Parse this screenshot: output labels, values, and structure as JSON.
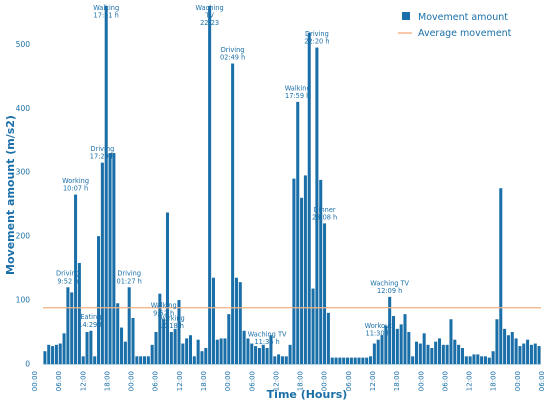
{
  "chart_data": {
    "type": "bar",
    "xlabel": "Time (Hours)",
    "ylabel": "Movement amount (m/s2)",
    "ylim": [
      0,
      560
    ],
    "yticks": [
      0,
      100,
      200,
      300,
      400,
      500
    ],
    "xticks": [
      "00:00",
      "06:00",
      "12:00",
      "18:00",
      "00:00",
      "06:00",
      "12:00",
      "18:00",
      "00:00",
      "06:00",
      "12:00",
      "18:00",
      "00:00",
      "06:00",
      "12:00",
      "18:00",
      "00:00",
      "06:00",
      "12:00",
      "18:00",
      "00:00",
      "06:00"
    ],
    "bar_color": "#1a6fa8",
    "avg_color": "#f4b183",
    "average_value": 88,
    "legend": {
      "bars": "Movement amount",
      "line": "Average movement",
      "placement": "top-right"
    },
    "values": [
      20,
      30,
      28,
      30,
      32,
      48,
      120,
      112,
      265,
      158,
      12,
      50,
      52,
      12,
      200,
      315,
      560,
      330,
      330,
      95,
      57,
      35,
      120,
      72,
      12,
      12,
      12,
      12,
      30,
      50,
      110,
      70,
      237,
      50,
      55,
      100,
      32,
      40,
      45,
      12,
      38,
      20,
      25,
      560,
      135,
      38,
      40,
      40,
      78,
      470,
      135,
      128,
      52,
      40,
      32,
      28,
      25,
      30,
      25,
      45,
      12,
      15,
      12,
      12,
      30,
      290,
      410,
      260,
      295,
      518,
      118,
      495,
      288,
      220,
      80,
      10,
      10,
      10,
      10,
      10,
      10,
      10,
      10,
      10,
      10,
      12,
      32,
      38,
      45,
      60,
      105,
      75,
      55,
      62,
      78,
      50,
      12,
      35,
      32,
      48,
      30,
      25,
      35,
      40,
      30,
      30,
      70,
      38,
      30,
      25,
      12,
      12,
      15,
      15,
      12,
      12,
      10,
      20,
      70,
      275,
      55,
      45,
      50,
      40,
      28,
      32,
      38,
      30,
      32,
      28
    ],
    "annotations": [
      {
        "lines": [
          "Driving",
          "9:52 h"
        ],
        "bar": 6
      },
      {
        "lines": [
          "Working",
          "10:07 h"
        ],
        "bar": 8
      },
      {
        "lines": [
          "Eating",
          "14:29 h"
        ],
        "bar": 12
      },
      {
        "lines": [
          "Walking",
          "17:51 h"
        ],
        "bar": 16
      },
      {
        "lines": [
          "Driving",
          "17:29 h"
        ],
        "bar": 15
      },
      {
        "lines": [
          "Driving",
          "01:27 h"
        ],
        "bar": 22
      },
      {
        "lines": [
          "Working",
          "10:18 h"
        ],
        "bar": 33
      },
      {
        "lines": [
          "Walking",
          "9:52 h"
        ],
        "bar": 31
      },
      {
        "lines": [
          "Waching",
          "TV",
          "22:23"
        ],
        "bar": 43
      },
      {
        "lines": [
          "Driving",
          "02:49 h"
        ],
        "bar": 49
      },
      {
        "lines": [
          "Waching TV",
          "11:36 h"
        ],
        "bar": 58
      },
      {
        "lines": [
          "Walking",
          "17:59 h"
        ],
        "bar": 66
      },
      {
        "lines": [
          "Driving",
          "22:20 h"
        ],
        "bar": 71
      },
      {
        "lines": [
          "Dinner",
          "23:08 h"
        ],
        "bar": 73
      },
      {
        "lines": [
          "Waching TV",
          "12:09 h"
        ],
        "bar": 90
      },
      {
        "lines": [
          "Workout",
          "11:30 h"
        ],
        "bar": 87
      }
    ]
  }
}
